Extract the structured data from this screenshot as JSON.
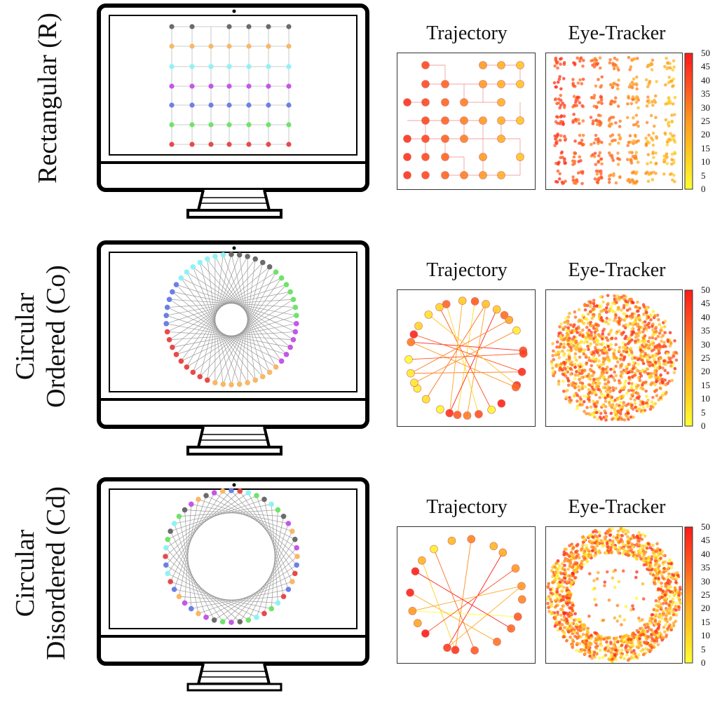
{
  "colorbar": {
    "ticks": [
      "50",
      "45",
      "40",
      "35",
      "30",
      "25",
      "20",
      "15",
      "10",
      "5",
      "0"
    ],
    "colors": [
      "#ffff33",
      "#ffcc22",
      "#ff9922",
      "#ff5522",
      "#ff1a1a"
    ]
  },
  "rows": [
    {
      "label_lines": [
        "Rectangular (R)"
      ],
      "panel_titles": {
        "trajectory": "Trajectory",
        "eye_tracker": "Eye-Tracker"
      },
      "layout": "grid"
    },
    {
      "label_lines": [
        "Circular",
        "Ordered (Co)"
      ],
      "panel_titles": {
        "trajectory": "Trajectory",
        "eye_tracker": "Eye-Tracker"
      },
      "layout": "circular-ordered"
    },
    {
      "label_lines": [
        "Circular",
        "Disordered (Cd)"
      ],
      "panel_titles": {
        "trajectory": "Trajectory",
        "eye_tracker": "Eye-Tracker"
      },
      "layout": "circular-disordered"
    }
  ],
  "node_colors": {
    "gray": "#6b6b6b",
    "orange": "#f7b868",
    "cyan": "#8ef2f5",
    "purple": "#c457e6",
    "blue": "#6c7fe8",
    "green": "#6fe36a",
    "red": "#e84a4a"
  }
}
